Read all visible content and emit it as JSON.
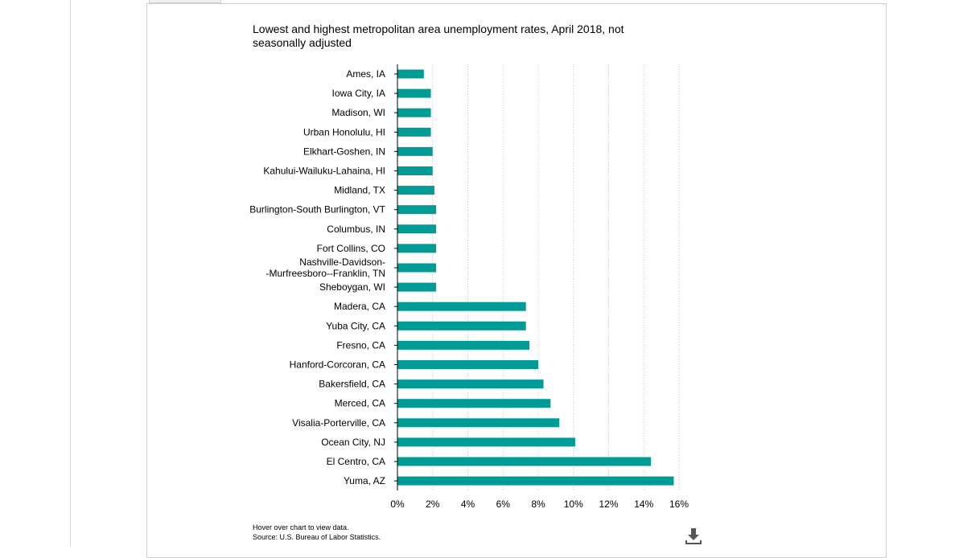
{
  "chart_data": {
    "type": "bar",
    "orientation": "horizontal",
    "title": "Lowest and highest metropolitan area unemployment rates, April 2018, not seasonally adjusted",
    "title_lines": [
      "Lowest and highest metropolitan area unemployment rates, April 2018, not",
      "seasonally adjusted"
    ],
    "categories": [
      "Ames, IA",
      "Iowa City, IA",
      "Madison, WI",
      "Urban Honolulu, HI",
      "Elkhart-Goshen, IN",
      "Kahului-Wailuku-Lahaina, HI",
      "Midland, TX",
      "Burlington-South Burlington, VT",
      "Columbus, IN",
      "Fort Collins, CO",
      "Nashville-Davidson--Murfreesboro--Franklin, TN",
      "Sheboygan, WI",
      "Madera, CA",
      "Yuba City, CA",
      "Fresno, CA",
      "Hanford-Corcoran, CA",
      "Bakersfield, CA",
      "Merced, CA",
      "Visalia-Porterville, CA",
      "Ocean City, NJ",
      "El Centro, CA",
      "Yuma, AZ"
    ],
    "category_label_lines": [
      [
        "Ames, IA"
      ],
      [
        "Iowa City, IA"
      ],
      [
        "Madison, WI"
      ],
      [
        "Urban Honolulu, HI"
      ],
      [
        "Elkhart-Goshen, IN"
      ],
      [
        "Kahului-Wailuku-Lahaina, HI"
      ],
      [
        "Midland, TX"
      ],
      [
        "Burlington-South Burlington, VT"
      ],
      [
        "Columbus, IN"
      ],
      [
        "Fort Collins, CO"
      ],
      [
        "Nashville-Davidson-",
        "-Murfreesboro--Franklin, TN"
      ],
      [
        "Sheboygan, WI"
      ],
      [
        "Madera, CA"
      ],
      [
        "Yuba City, CA"
      ],
      [
        "Fresno, CA"
      ],
      [
        "Hanford-Corcoran, CA"
      ],
      [
        "Bakersfield, CA"
      ],
      [
        "Merced, CA"
      ],
      [
        "Visalia-Porterville, CA"
      ],
      [
        "Ocean City, NJ"
      ],
      [
        "El Centro, CA"
      ],
      [
        "Yuma, AZ"
      ]
    ],
    "values": [
      1.5,
      1.9,
      1.9,
      1.9,
      2.0,
      2.0,
      2.1,
      2.2,
      2.2,
      2.2,
      2.2,
      2.2,
      7.3,
      7.3,
      7.5,
      8.0,
      8.3,
      8.7,
      9.2,
      10.1,
      14.4,
      15.7
    ],
    "xlim": [
      0,
      16
    ],
    "xticks": [
      0,
      2,
      4,
      6,
      8,
      10,
      12,
      14,
      16
    ],
    "tick_suffix": "%",
    "xlabel": "",
    "ylabel": "",
    "grid": "vertical dotted",
    "bar_color": "#009b95"
  },
  "footnote": {
    "hover_hint": "Hover over chart to view data.",
    "source": "Source: U.S. Bureau of Labor Statistics."
  },
  "download": {
    "icon": "download-icon"
  }
}
